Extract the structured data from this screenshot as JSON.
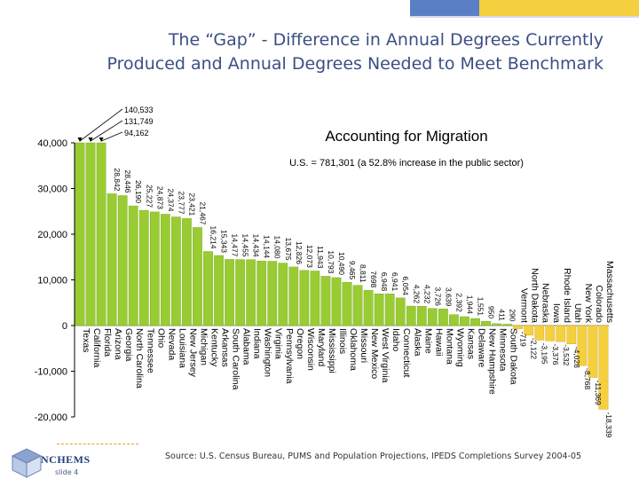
{
  "slide": {
    "title_line1": "The “Gap” - Difference in Annual Degrees Currently",
    "title_line2": "Produced and Annual Degrees Needed to Meet Benchmark",
    "source": "Source:  U.S. Census Bureau, PUMS and Population Projections, IPEDS Completions Survey 2004-05",
    "logo_text": "NCHEMS",
    "slide_number": "slide 4",
    "colors": {
      "accent_blue": "#5b7fc4",
      "accent_yellow": "#f4d03f",
      "title": "#3b4f84"
    }
  },
  "chart_data": {
    "type": "bar",
    "title": "Accounting for Migration",
    "subtitle": "U.S. = 781,301 (a 52.8% increase in the public sector)",
    "xlabel": "",
    "ylabel": "",
    "ylim": [
      -20000,
      40000
    ],
    "yticks": [
      40000,
      30000,
      20000,
      10000,
      0,
      -10000,
      -20000
    ],
    "ytick_labels": [
      "40,000",
      "30,000",
      "20,000",
      "10,000",
      "0",
      "-10,000",
      "-20,000"
    ],
    "bar_color": "#99cc33",
    "negative_bar_color": "#f4d03f",
    "grid": false,
    "categories": [
      "Texas",
      "California",
      "Florida",
      "Arizona",
      "Georgia",
      "North Carolina",
      "Tennessee",
      "Ohio",
      "Nevada",
      "Louisiana",
      "New Jersey",
      "Michigan",
      "Kentucky",
      "Arkansas",
      "South Carolina",
      "Alabama",
      "Indiana",
      "Washington",
      "Virginia",
      "Pennsylvania",
      "Oregon",
      "Wisconsin",
      "Maryland",
      "Mississippi",
      "Illinois",
      "Oklahoma",
      "Missouri",
      "New Mexico",
      "West Virginia",
      "Idaho",
      "Connecticut",
      "Alaska",
      "Maine",
      "Hawaii",
      "Montana",
      "Wyoming",
      "Kansas",
      "Delaware",
      "New Hampshire",
      "Minnesota",
      "South Dakota",
      "Vermont",
      "North Dakota",
      "Nebraska",
      "Iowa",
      "Rhode Island",
      "Utah",
      "New York",
      "Colorado",
      "Massachusetts"
    ],
    "values": [
      140533,
      131749,
      94162,
      28842,
      28446,
      26190,
      25227,
      24873,
      24374,
      23777,
      23421,
      21467,
      16214,
      15343,
      14477,
      14455,
      14434,
      14144,
      14080,
      13675,
      12826,
      12073,
      11943,
      10793,
      10490,
      9465,
      8811,
      7698,
      6948,
      6941,
      6054,
      4262,
      4232,
      3726,
      3639,
      2392,
      1944,
      1551,
      950,
      411,
      290,
      -719,
      -2122,
      -3195,
      -3376,
      -3532,
      -4028,
      -8768,
      -11369,
      -18339
    ],
    "value_labels": [
      "140,533",
      "131,749",
      "94,162",
      "28,842",
      "28,446",
      "26,190",
      "25,227",
      "24,873",
      "24,374",
      "23,777",
      "23,421",
      "21,467",
      "16,214",
      "15,343",
      "14,477",
      "14,455",
      "14,434",
      "14,144",
      "14,080",
      "13,675",
      "12,826",
      "12,073",
      "11,943",
      "10,793",
      "10,490",
      "9,465",
      "8,811",
      "7698",
      "6,948",
      "6,941",
      "6,054",
      "4,262",
      "4,232",
      "3,726",
      "3,639",
      "2,392",
      "1,944",
      "1,551",
      "950",
      "411",
      "290",
      "-719",
      "-2,122",
      "-3,195",
      "-3,376",
      "-3,532",
      "-4,028",
      "-8,768",
      "-11,369",
      "-18,339"
    ]
  }
}
